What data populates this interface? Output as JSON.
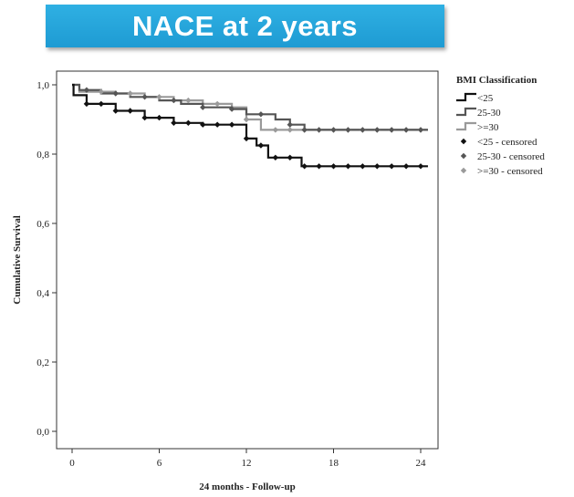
{
  "banner": {
    "title": "NACE at 2 years"
  },
  "chart_data": {
    "type": "line",
    "subtype": "kaplan-meier",
    "xlabel": "24 months - Follow-up",
    "ylabel": "Cumulative Survival",
    "xlim": [
      0,
      24
    ],
    "ylim": [
      0,
      1.0
    ],
    "xticks": [
      "0",
      "6",
      "12",
      "18",
      "24"
    ],
    "xtick_values": [
      0,
      6,
      12,
      18,
      24
    ],
    "yticks": [
      "0,0",
      "0,2",
      "0,4",
      "0,6",
      "0,8",
      "1,0"
    ],
    "ytick_values": [
      0,
      0.2,
      0.4,
      0.6,
      0.8,
      1.0
    ],
    "legend": {
      "title": "BMI Classification",
      "position": "right",
      "entries": [
        "<25",
        "25-30",
        ">=30",
        "<25 - censored",
        "25-30 - censored",
        ">=30 - censored"
      ]
    },
    "grid": false,
    "series": [
      {
        "name": "<25",
        "color": "#111111",
        "steps": [
          [
            0,
            1.0
          ],
          [
            0.1,
            0.97
          ],
          [
            1,
            0.945
          ],
          [
            3,
            0.925
          ],
          [
            5,
            0.905
          ],
          [
            7,
            0.89
          ],
          [
            9,
            0.885
          ],
          [
            11.5,
            0.885
          ],
          [
            12,
            0.845
          ],
          [
            12.7,
            0.825
          ],
          [
            13.5,
            0.79
          ],
          [
            15,
            0.79
          ],
          [
            15.8,
            0.765
          ],
          [
            24.5,
            0.765
          ]
        ],
        "censored": [
          1,
          2,
          3,
          4,
          5,
          6,
          7,
          8,
          9,
          10,
          11,
          12,
          13,
          14,
          15,
          16,
          17,
          18,
          19,
          20,
          21,
          22,
          23,
          24
        ]
      },
      {
        "name": "25-30",
        "color": "#555555",
        "steps": [
          [
            0,
            1.0
          ],
          [
            0.5,
            0.985
          ],
          [
            2,
            0.975
          ],
          [
            4,
            0.965
          ],
          [
            6,
            0.955
          ],
          [
            7.5,
            0.945
          ],
          [
            9,
            0.935
          ],
          [
            11,
            0.93
          ],
          [
            12,
            0.915
          ],
          [
            14,
            0.9
          ],
          [
            15,
            0.885
          ],
          [
            16,
            0.87
          ],
          [
            24.5,
            0.87
          ]
        ],
        "censored": [
          1,
          3,
          5,
          7,
          9,
          11,
          13,
          15,
          16,
          17,
          18,
          19,
          20,
          21,
          22,
          23,
          24
        ]
      },
      {
        "name": ">=30",
        "color": "#9a9a9a",
        "steps": [
          [
            0,
            1.0
          ],
          [
            0.5,
            0.98
          ],
          [
            3,
            0.975
          ],
          [
            5,
            0.965
          ],
          [
            7,
            0.955
          ],
          [
            9,
            0.945
          ],
          [
            11,
            0.935
          ],
          [
            12,
            0.9
          ],
          [
            13,
            0.87
          ],
          [
            24.5,
            0.87
          ]
        ],
        "censored": [
          2,
          4,
          6,
          8,
          10,
          12,
          14,
          15,
          16,
          17,
          18,
          19,
          20,
          21,
          22,
          23,
          24
        ]
      }
    ]
  }
}
